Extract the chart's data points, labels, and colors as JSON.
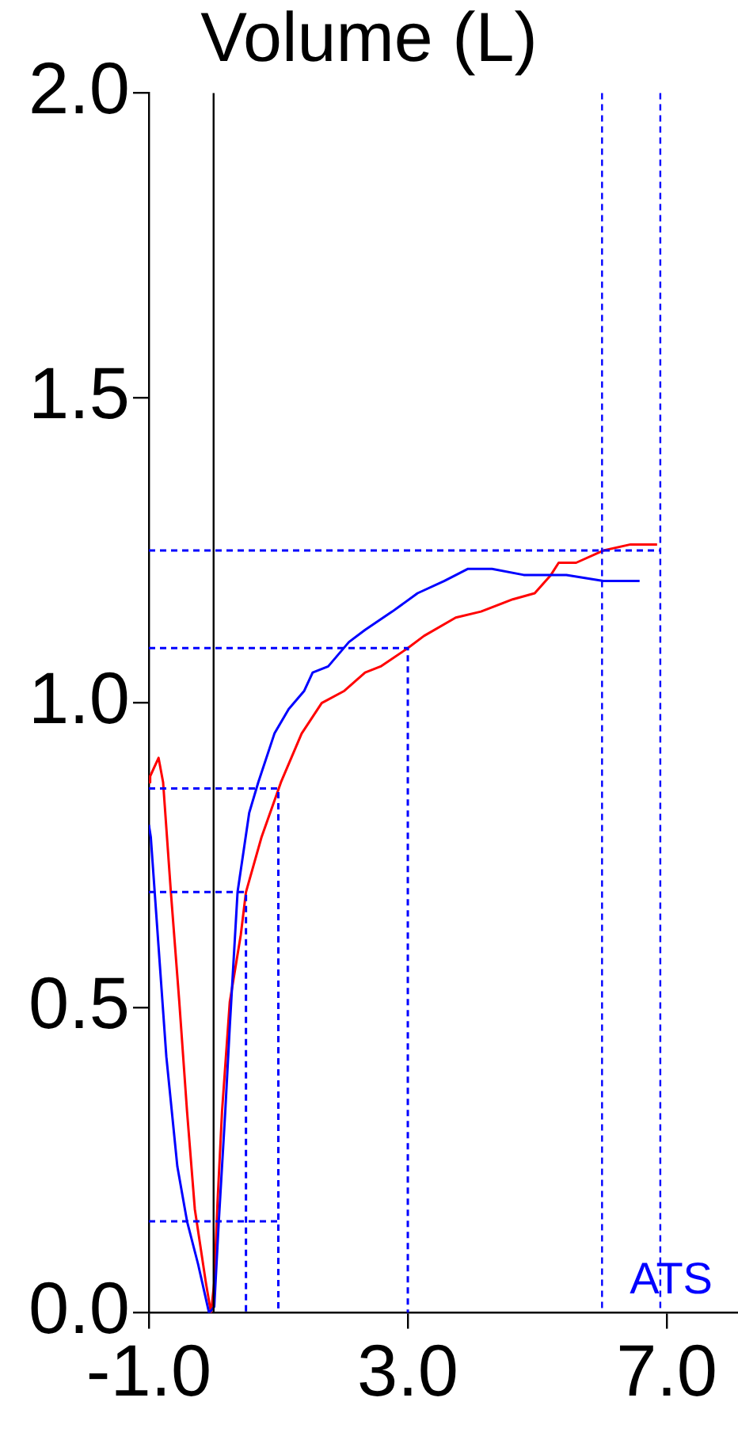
{
  "chart_data": {
    "type": "line",
    "title": "Volume (L)",
    "xlim": [
      -1,
      8.1
    ],
    "ylim": [
      0,
      2
    ],
    "xticks": [
      {
        "value": -1,
        "label": "-1.0"
      },
      {
        "value": 3,
        "label": "3.0"
      },
      {
        "value": 7,
        "label": "7.0"
      }
    ],
    "yticks": [
      {
        "value": 0,
        "label": "0.0"
      },
      0.5,
      {
        "value": 1,
        "label": "1.0"
      },
      1.5,
      {
        "value": 2,
        "label": "2.0"
      }
    ],
    "grid": false,
    "legend": false,
    "marker": "none",
    "series": [
      {
        "color": "#0000ff",
        "line_style": "dashed",
        "x": [
          -1,
          0.5,
          0.5
        ],
        "values": [
          0.69,
          0.69,
          0
        ]
      },
      {
        "color": "#0000ff",
        "line_style": "dashed",
        "x": [
          -1,
          1,
          1
        ],
        "values": [
          0.86,
          0.86,
          0
        ]
      },
      {
        "color": "#0000ff",
        "line_style": "dashed",
        "x": [
          -1,
          3,
          3
        ],
        "values": [
          1.09,
          1.09,
          0
        ]
      },
      {
        "color": "#0000ff",
        "line_style": "dashed",
        "x": [
          -1,
          1
        ],
        "values": [
          0.15,
          0.15
        ]
      },
      {
        "color": "#0000ff",
        "line_style": "dashed",
        "x": [
          -1,
          6.9
        ],
        "values": [
          1.25,
          1.25
        ]
      },
      {
        "color": "#0000ff",
        "line_style": "solid",
        "x": [
          -1,
          -0.97,
          -0.85,
          -0.73,
          -0.56,
          -0.41,
          -0.24,
          -0.07,
          0.01,
          0.08,
          0.18,
          0.25,
          0.37,
          0.55,
          0.69,
          0.94,
          1.16,
          1.4,
          1.53,
          1.77,
          2.09,
          2.34,
          2.76,
          3.15,
          3.56,
          3.93,
          4.3,
          4.79,
          5.45,
          6.02,
          6.58
        ],
        "values": [
          0.8,
          0.78,
          0.6,
          0.42,
          0.24,
          0.15,
          0.08,
          0,
          0.01,
          0.15,
          0.33,
          0.47,
          0.69,
          0.82,
          0.87,
          0.95,
          0.99,
          1.02,
          1.05,
          1.06,
          1.1,
          1.12,
          1.15,
          1.18,
          1.2,
          1.22,
          1.22,
          1.21,
          1.21,
          1.2,
          1.2
        ]
      },
      {
        "color": "#ff0000",
        "line_style": "solid",
        "x": [
          -1,
          -0.98,
          -0.85,
          -0.78,
          -0.66,
          -0.53,
          -0.41,
          -0.29,
          -0.12,
          -0.04,
          0.01,
          0.06,
          0.13,
          0.25,
          0.42,
          0.5,
          0.74,
          1.04,
          1.36,
          1.67,
          2.02,
          2.34,
          2.58,
          3.0,
          3.25,
          3.74,
          4.13,
          4.62,
          4.96,
          5.21,
          5.33,
          5.6,
          6.02,
          6.44,
          6.85
        ],
        "values": [
          0.87,
          0.88,
          0.91,
          0.87,
          0.69,
          0.51,
          0.33,
          0.17,
          0.05,
          0,
          0.05,
          0.18,
          0.33,
          0.51,
          0.62,
          0.69,
          0.78,
          0.87,
          0.95,
          1.0,
          1.02,
          1.05,
          1.06,
          1.09,
          1.11,
          1.14,
          1.15,
          1.17,
          1.18,
          1.21,
          1.23,
          1.23,
          1.25,
          1.26,
          1.26
        ]
      }
    ],
    "ref_lines": [
      {
        "axis": "x",
        "value": 0,
        "color": "#000000",
        "line_style": "solid"
      },
      {
        "axis": "x",
        "value": 6.0,
        "color": "#0000ff",
        "line_style": "dashed"
      },
      {
        "axis": "x",
        "value": 6.9,
        "color": "#0000ff",
        "line_style": "dashed"
      }
    ],
    "annotations": [
      "ATS"
    ]
  }
}
